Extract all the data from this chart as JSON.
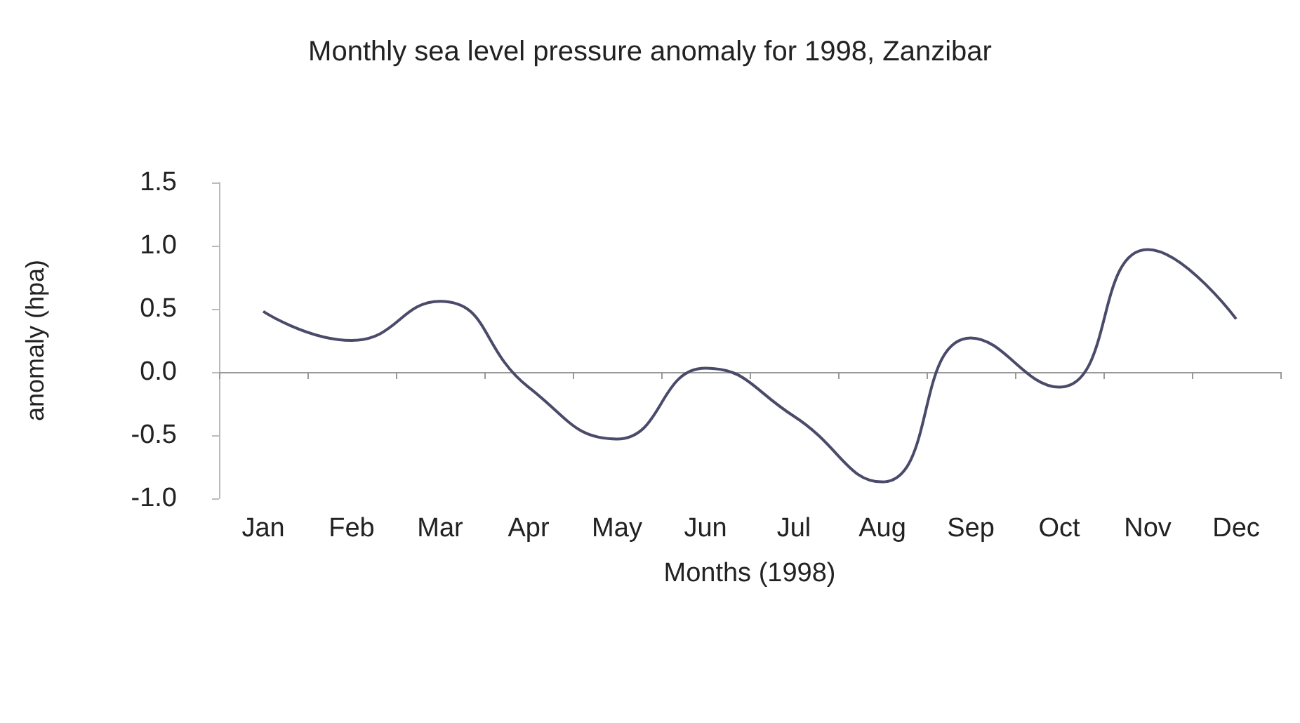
{
  "chart_data": {
    "type": "line",
    "title": "Monthly sea level pressure anomaly for 1998, Zanzibar",
    "xlabel": "Months (1998)",
    "ylabel": "anomaly (hpa)",
    "categories": [
      "Jan",
      "Feb",
      "Mar",
      "Apr",
      "May",
      "Jun",
      "Jul",
      "Aug",
      "Sep",
      "Oct",
      "Nov",
      "Dec"
    ],
    "series": [
      {
        "color": "#4a4a6a",
        "values": [
          0.48,
          0.25,
          0.56,
          -0.12,
          -0.53,
          0.03,
          -0.35,
          -0.87,
          0.27,
          -0.12,
          0.97,
          0.42
        ]
      }
    ],
    "ylim": [
      -1.0,
      1.5
    ],
    "yticks": [
      {
        "value": -1,
        "label": "-1.0"
      },
      {
        "value": -0.5,
        "label": "-0.5"
      },
      {
        "value": 0,
        "label": "0.0"
      },
      {
        "value": 0.5,
        "label": "0.5"
      },
      {
        "value": 1,
        "label": "1.0"
      },
      {
        "value": 1.5,
        "label": "1.5"
      }
    ],
    "marker": "none",
    "line_style": "solid"
  }
}
